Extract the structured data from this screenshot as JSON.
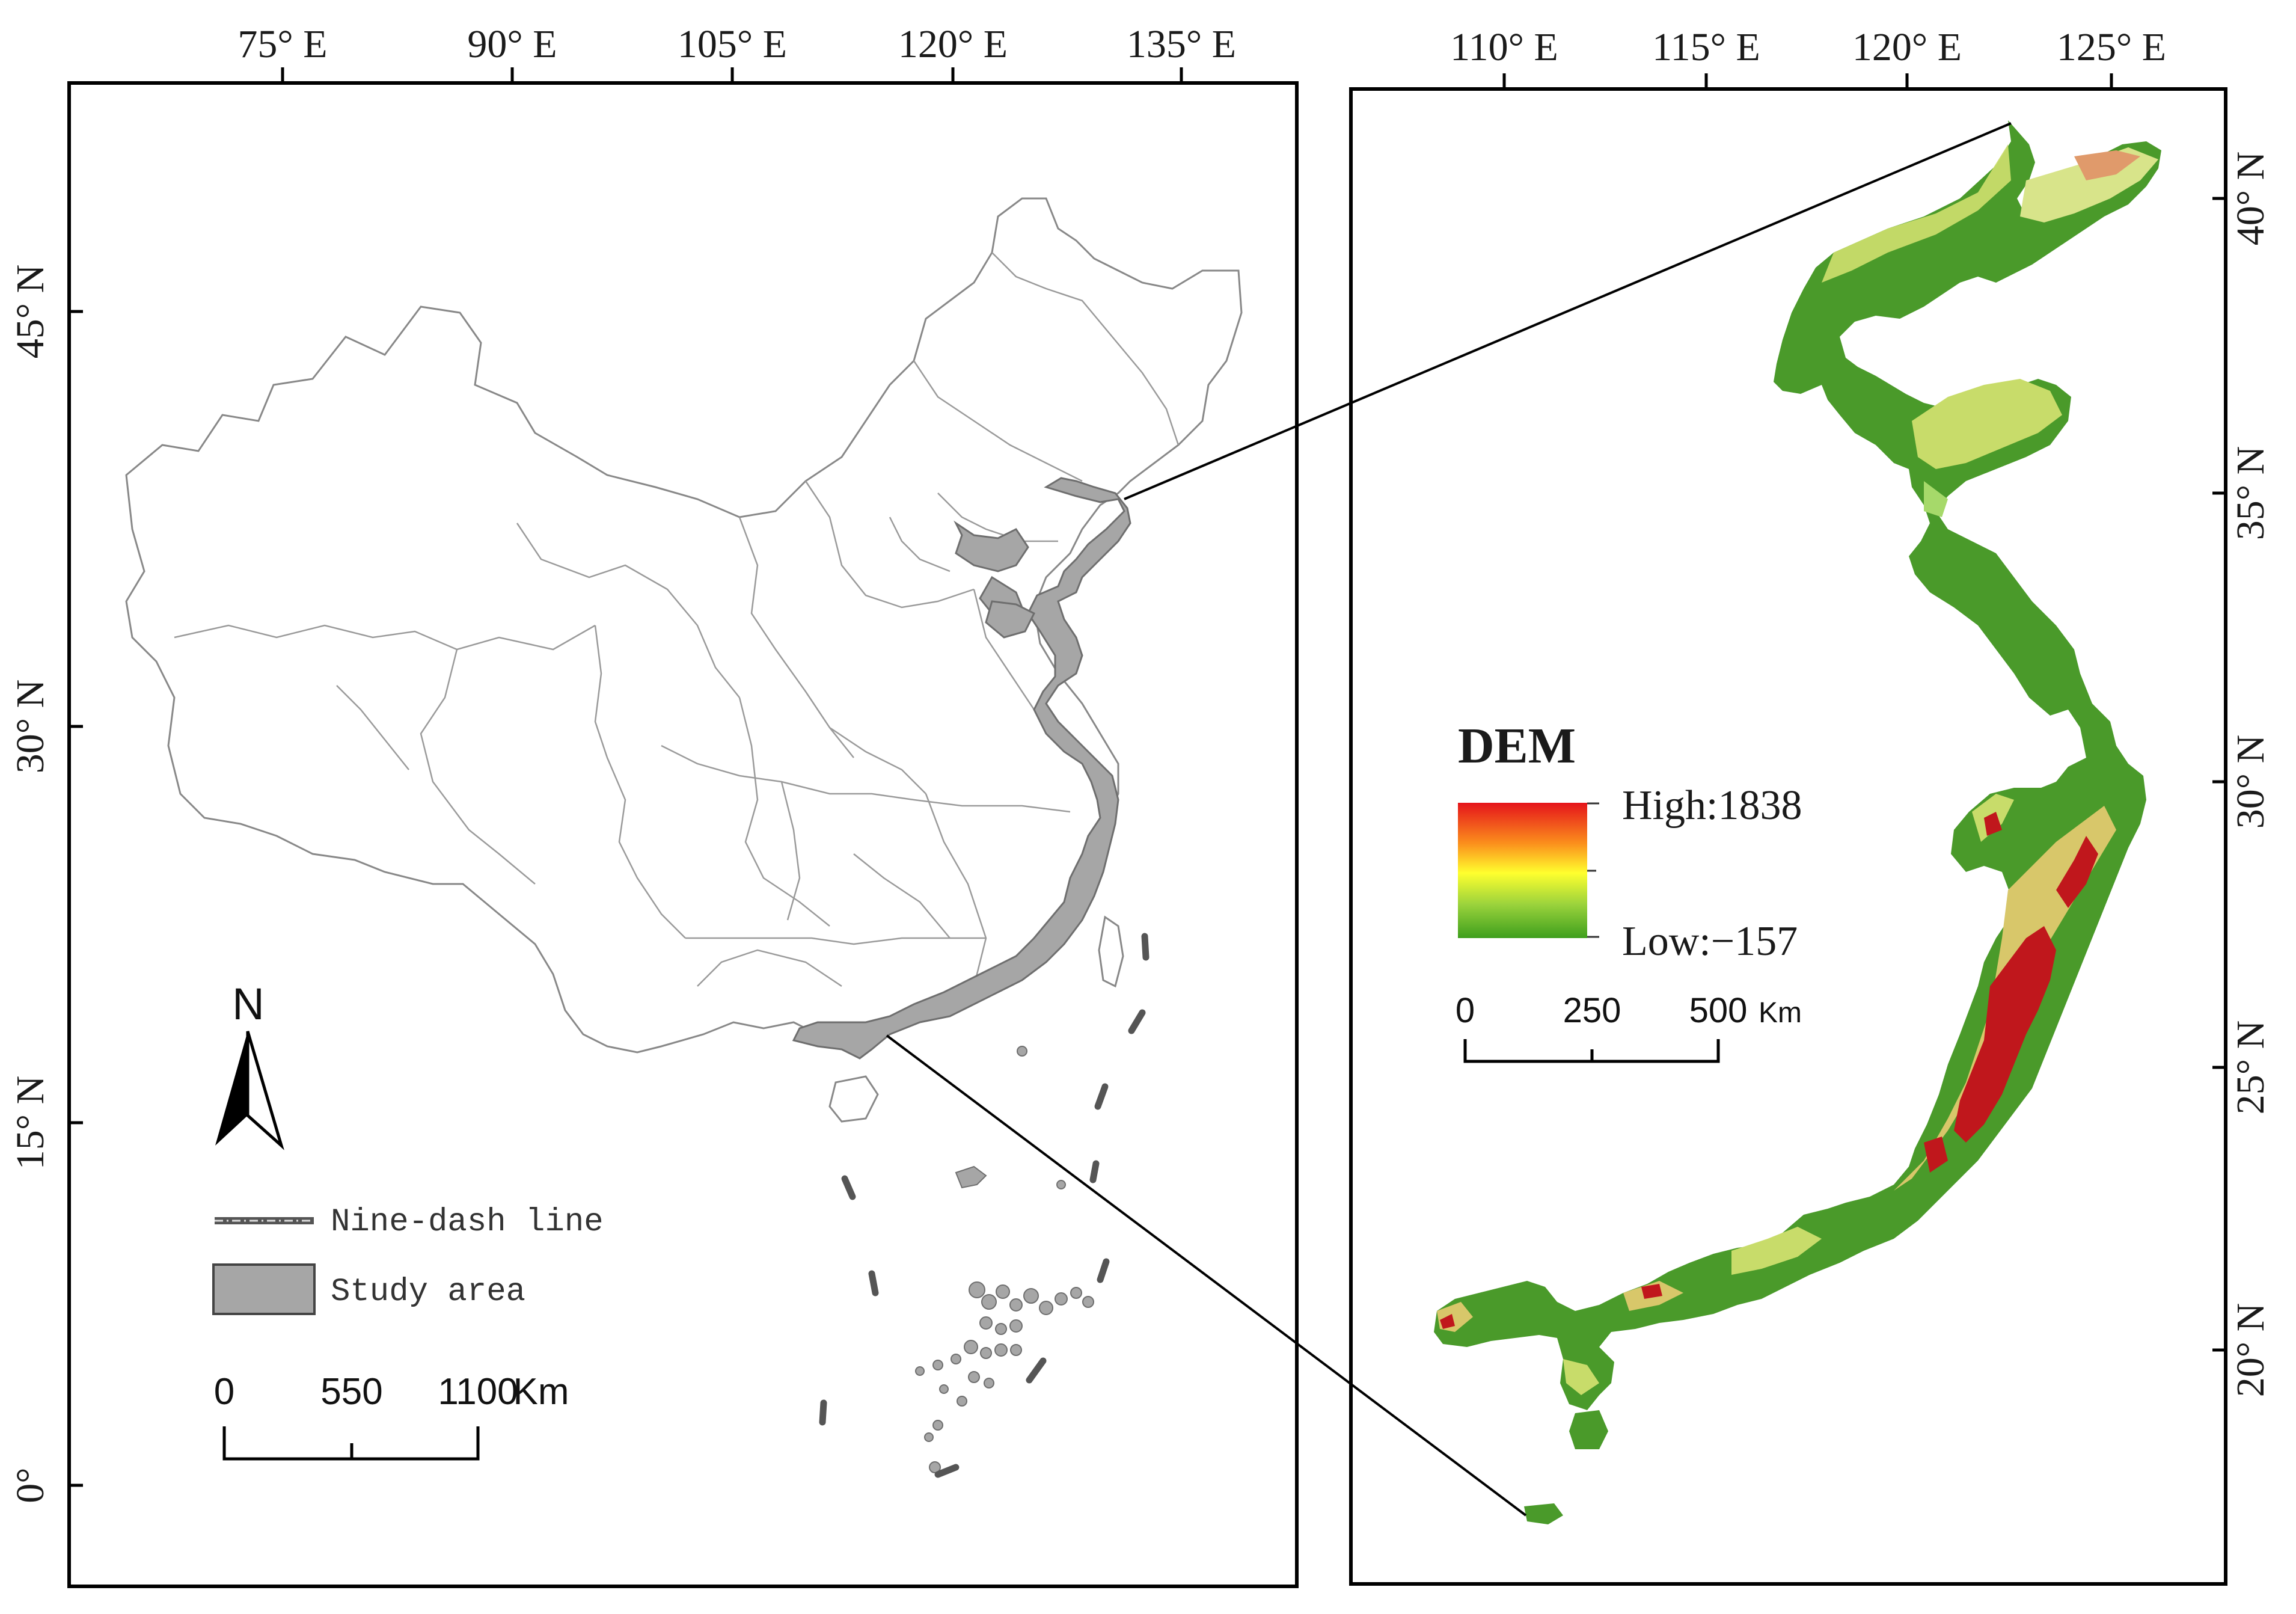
{
  "left_map": {
    "lon_labels": [
      "75° E",
      "90° E",
      "105° E",
      "120° E",
      "135° E"
    ],
    "lat_labels": [
      "45° N",
      "30° N",
      "15° N",
      "0°"
    ],
    "north_arrow": "N",
    "legend": {
      "nine_dash_label": "Nine-dash line",
      "study_area_label": "Study area"
    },
    "scale": {
      "ticks": [
        "0",
        "550",
        "1100"
      ],
      "unit": "Km"
    }
  },
  "right_map": {
    "lon_labels": [
      "110° E",
      "115° E",
      "120° E",
      "125° E"
    ],
    "lat_labels": [
      "40° N",
      "35° N",
      "30° N",
      "25° N",
      "20° N"
    ],
    "dem": {
      "title": "DEM",
      "high_label": "High:1838",
      "low_label": "Low:−157",
      "colors": [
        "#d7191c",
        "#fdae61",
        "#ffff33",
        "#a6d96a",
        "#3a9a1f"
      ]
    },
    "scale": {
      "ticks": [
        "0",
        "250",
        "500"
      ],
      "unit": "Km"
    }
  },
  "colors": {
    "study_area": "#a6a6a6",
    "lowland_green": "#4a9a2a",
    "highland_red": "#c0171c"
  }
}
